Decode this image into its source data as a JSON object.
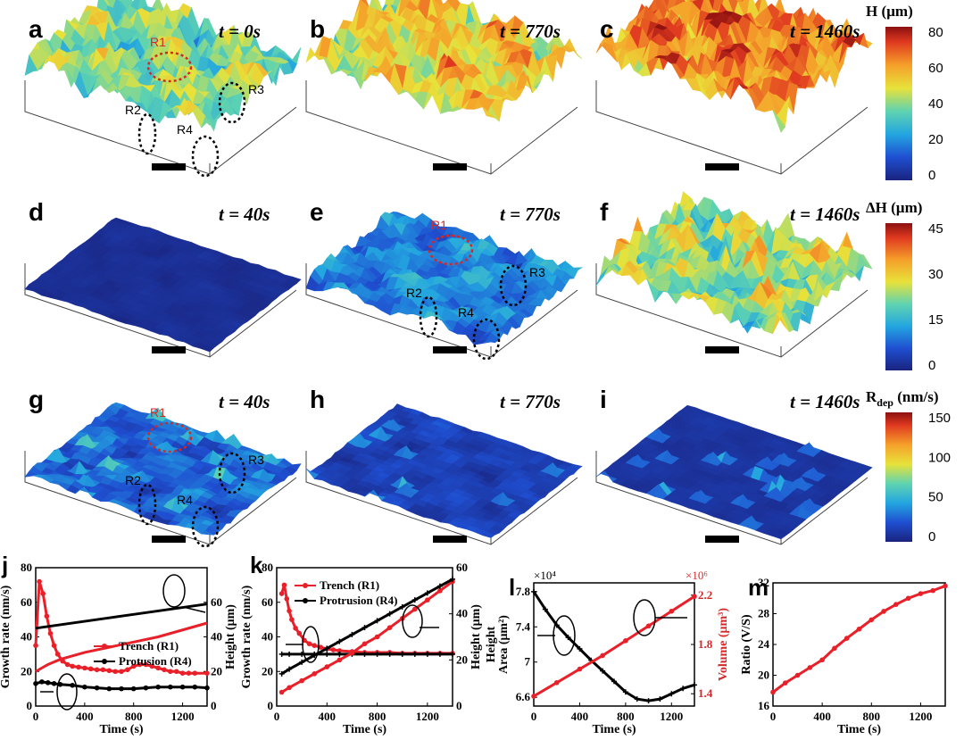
{
  "surface_panels": [
    {
      "letter": "a",
      "time": "t = 0s",
      "row": 0,
      "col": 0,
      "kind": "height",
      "level": 0.48,
      "rough": 0.55,
      "regions": true
    },
    {
      "letter": "b",
      "time": "t = 770s",
      "row": 0,
      "col": 1,
      "kind": "height",
      "level": 0.62,
      "rough": 0.6,
      "regions": false
    },
    {
      "letter": "c",
      "time": "t = 1460s",
      "row": 0,
      "col": 2,
      "kind": "height",
      "level": 0.8,
      "rough": 0.7,
      "regions": false
    },
    {
      "letter": "d",
      "time": "t = 40s",
      "row": 1,
      "col": 0,
      "kind": "delta",
      "level": 0.04,
      "rough": 0.05,
      "regions": false
    },
    {
      "letter": "e",
      "time": "t = 770s",
      "row": 1,
      "col": 1,
      "kind": "delta",
      "level": 0.25,
      "rough": 0.35,
      "regions": true
    },
    {
      "letter": "f",
      "time": "t = 1460s",
      "row": 1,
      "col": 2,
      "kind": "delta",
      "level": 0.5,
      "rough": 0.6,
      "regions": false
    },
    {
      "letter": "g",
      "time": "t = 40s",
      "row": 2,
      "col": 0,
      "kind": "rate",
      "level": 0.18,
      "rough": 0.3,
      "regions": true
    },
    {
      "letter": "h",
      "time": "t = 770s",
      "row": 2,
      "col": 1,
      "kind": "rate",
      "level": 0.1,
      "rough": 0.15,
      "regions": false
    },
    {
      "letter": "i",
      "time": "t = 1460s",
      "row": 2,
      "col": 2,
      "kind": "rate",
      "level": 0.06,
      "rough": 0.05,
      "regions": false
    }
  ],
  "region_labels": [
    "R1",
    "R2",
    "R3",
    "R4"
  ],
  "colorbars": [
    {
      "title": "H (µm)",
      "ticks": [
        "80",
        "60",
        "40",
        "20",
        "0"
      ]
    },
    {
      "title": "ΔH (µm)",
      "ticks": [
        "45",
        "30",
        "15",
        "0"
      ]
    },
    {
      "title": "R",
      "title_sub": "dep",
      "title_rest": " (nm/s)",
      "ticks": [
        "150",
        "100",
        "50",
        "0"
      ]
    }
  ],
  "colors": {
    "red": "#d62728",
    "black": "#000000",
    "trench": "#e8202a",
    "axis": "#000000"
  },
  "chart_data": [
    {
      "letter": "j",
      "type": "line",
      "xlabel": "Time (s)",
      "ylabel": "Growth rate (nm/s)",
      "ylabel_right": "Height (μm)",
      "xlim": [
        0,
        1400
      ],
      "ylim": [
        0,
        80
      ],
      "ylim_right": [
        0,
        80
      ],
      "xticks": [
        "0",
        "400",
        "800",
        "1200"
      ],
      "yticks": [
        "0",
        "20",
        "40",
        "60",
        "80"
      ],
      "yticks_right": [
        "0",
        "20",
        "40",
        "60"
      ],
      "legend": [
        "Trench (R1)",
        "Protusion (R4)"
      ],
      "series": [
        {
          "name": "Trench (R1)",
          "axis": "left",
          "color": "#e8202a",
          "marker": "dot",
          "x": [
            0,
            30,
            60,
            90,
            120,
            150,
            180,
            220,
            260,
            300,
            350,
            400,
            450,
            500,
            550,
            600,
            650,
            700,
            750,
            800,
            850,
            900,
            950,
            1000,
            1050,
            1100,
            1150,
            1200,
            1250,
            1300,
            1400
          ],
          "y": [
            35,
            72,
            65,
            52,
            42,
            35,
            30,
            26,
            24,
            23,
            22.5,
            22,
            21.5,
            21,
            21,
            20.5,
            20,
            20,
            21,
            23,
            24,
            24,
            23,
            22,
            21,
            20,
            20,
            19,
            19,
            19,
            19
          ]
        },
        {
          "name": "Protusion (R4)",
          "axis": "left",
          "color": "#000000",
          "marker": "dot",
          "x": [
            0,
            50,
            100,
            150,
            200,
            300,
            400,
            500,
            600,
            700,
            800,
            900,
            1000,
            1100,
            1200,
            1300,
            1400
          ],
          "y": [
            13,
            14,
            13.5,
            13,
            12.5,
            12,
            11,
            10.5,
            10,
            10,
            10,
            10.5,
            11,
            11,
            11,
            11,
            10.5
          ]
        },
        {
          "name": "Trench height",
          "axis": "right",
          "color": "#e8202a",
          "x": [
            0,
            100,
            200,
            300,
            400,
            600,
            800,
            1000,
            1200,
            1400
          ],
          "y": [
            20,
            24,
            27,
            29,
            31,
            34,
            37,
            40,
            44,
            48
          ]
        },
        {
          "name": "Protrusion height",
          "axis": "right",
          "color": "#000000",
          "x": [
            0,
            200,
            400,
            600,
            800,
            1000,
            1200,
            1400
          ],
          "y": [
            45,
            47,
            49,
            51,
            53,
            55,
            57,
            59
          ]
        }
      ]
    },
    {
      "letter": "k",
      "type": "line",
      "xlabel": "Time (s)",
      "ylabel": "Growth rate (nm/s)",
      "ylabel_right": "Height (μm)",
      "xlim": [
        0,
        1400
      ],
      "ylim": [
        0,
        80
      ],
      "ylim_right": [
        0,
        60
      ],
      "xticks": [
        "0",
        "400",
        "800",
        "1200"
      ],
      "yticks": [
        "0",
        "20",
        "40",
        "60",
        "80"
      ],
      "yticks_right": [
        "0",
        "20",
        "40",
        "60"
      ],
      "legend": [
        "Trench (R1)",
        "Protrusion (R4)"
      ],
      "series": [
        {
          "name": "Trench (R1)",
          "axis": "left",
          "color": "#e8202a",
          "marker": "dot",
          "x": [
            40,
            60,
            80,
            100,
            120,
            150,
            180,
            220,
            260,
            300,
            350,
            400,
            450,
            500,
            600,
            700,
            800,
            900,
            1000,
            1100,
            1200,
            1300,
            1400
          ],
          "y": [
            65,
            70,
            62,
            55,
            50,
            45,
            42,
            38,
            36,
            35,
            34,
            33,
            32.5,
            32,
            31.5,
            31,
            31,
            31,
            30.5,
            30.5,
            30.5,
            30.5,
            30.5
          ]
        },
        {
          "name": "Protrusion (R4)",
          "axis": "left",
          "color": "#000000",
          "marker": "plus",
          "x": [
            40,
            100,
            200,
            300,
            400,
            500,
            600,
            700,
            800,
            900,
            1000,
            1100,
            1200,
            1300,
            1400
          ],
          "y": [
            30,
            30,
            30,
            30,
            30,
            30,
            30,
            30,
            30,
            30,
            30,
            30,
            30,
            30,
            30
          ]
        },
        {
          "name": "Trench height",
          "axis": "right",
          "color": "#e8202a",
          "marker": "dot",
          "x": [
            40,
            100,
            200,
            300,
            400,
            500,
            600,
            700,
            800,
            900,
            1000,
            1100,
            1200,
            1300,
            1400
          ],
          "y": [
            6,
            8,
            11,
            14,
            17,
            20,
            23,
            27,
            30,
            34,
            38,
            42,
            46,
            50,
            54
          ]
        },
        {
          "name": "Protrusion height",
          "axis": "right",
          "color": "#000000",
          "marker": "plus",
          "x": [
            40,
            100,
            200,
            300,
            400,
            500,
            600,
            700,
            800,
            900,
            1000,
            1100,
            1200,
            1300,
            1400
          ],
          "y": [
            14,
            16,
            19,
            22,
            25,
            28,
            31,
            34,
            37,
            40,
            43,
            46,
            49,
            52,
            55
          ]
        }
      ]
    },
    {
      "letter": "l",
      "type": "line",
      "xlabel": "Time (s)",
      "ylabel": "Height",
      "ylabel2": "Area (μm²)",
      "ylabel_right": "Volume (μm³)",
      "multiplier_left": "×10⁴",
      "multiplier_right": "×10⁶",
      "xlim": [
        0,
        1400
      ],
      "ylim": [
        6.5,
        7.9
      ],
      "ylim_right": [
        1.3,
        2.3
      ],
      "xticks": [
        "0",
        "400",
        "800",
        "1200"
      ],
      "yticks": [
        "6.6",
        "7",
        "7.4",
        "7.8"
      ],
      "yticks_right": [
        "1.4",
        "1.8",
        "2.2"
      ],
      "series": [
        {
          "name": "Area",
          "axis": "left",
          "color": "#000000",
          "marker": "plus",
          "x": [
            0,
            100,
            200,
            300,
            400,
            500,
            600,
            700,
            800,
            900,
            1000,
            1100,
            1200,
            1300,
            1400
          ],
          "y": [
            7.8,
            7.6,
            7.42,
            7.28,
            7.15,
            7.02,
            6.9,
            6.78,
            6.66,
            6.58,
            6.56,
            6.58,
            6.64,
            6.7,
            6.74
          ]
        },
        {
          "name": "Volume",
          "axis": "right",
          "color": "#e8202a",
          "marker": "dot",
          "x": [
            0,
            200,
            400,
            600,
            800,
            1000,
            1200,
            1400
          ],
          "y": [
            1.38,
            1.49,
            1.6,
            1.71,
            1.83,
            1.95,
            2.07,
            2.19
          ]
        }
      ]
    },
    {
      "letter": "m",
      "type": "line",
      "xlabel": "Time (s)",
      "ylabel": "Ratio (V/S)",
      "xlim": [
        0,
        1400
      ],
      "ylim": [
        16,
        32
      ],
      "xticks": [
        "0",
        "400",
        "800",
        "1200"
      ],
      "yticks": [
        "16",
        "20",
        "24",
        "28",
        "32"
      ],
      "series": [
        {
          "name": "Ratio",
          "axis": "left",
          "color": "#e8202a",
          "marker": "dot",
          "x": [
            0,
            100,
            200,
            300,
            400,
            500,
            600,
            700,
            800,
            900,
            1000,
            1100,
            1200,
            1300,
            1400
          ],
          "y": [
            17.8,
            19,
            20,
            21,
            22,
            23.5,
            24.8,
            26,
            27.2,
            28.3,
            29.2,
            30,
            30.6,
            31,
            31.6
          ]
        }
      ]
    }
  ]
}
